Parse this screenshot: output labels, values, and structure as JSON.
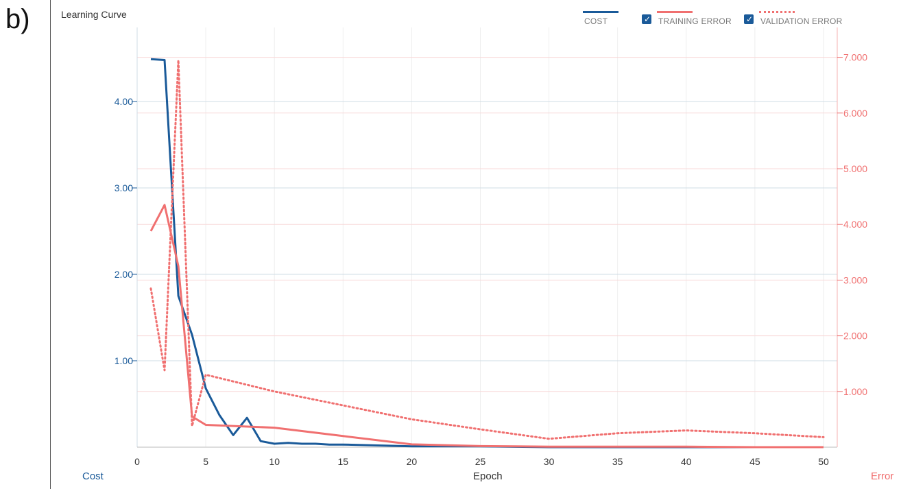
{
  "panel_label": "b)",
  "chart_data": {
    "type": "line",
    "title": "Learning Curve",
    "xlabel": "Epoch",
    "y_left_label": "Cost",
    "y_right_label": "Error",
    "xlim": [
      0,
      51
    ],
    "ylim_left": [
      0,
      4.5
    ],
    "ylim_right": [
      0,
      7.0
    ],
    "x_ticks": [
      0,
      5,
      10,
      15,
      20,
      25,
      30,
      35,
      40,
      45,
      50
    ],
    "y_left_ticks": [
      {
        "v": 1,
        "label": "1.00"
      },
      {
        "v": 2,
        "label": "2.00"
      },
      {
        "v": 3,
        "label": "3.00"
      },
      {
        "v": 4,
        "label": "4.00"
      }
    ],
    "y_right_ticks": [
      {
        "v": 1,
        "label": "1.000"
      },
      {
        "v": 2,
        "label": "2.000"
      },
      {
        "v": 3,
        "label": "3.000"
      },
      {
        "v": 4,
        "label": "4.000"
      },
      {
        "v": 5,
        "label": "5.000"
      },
      {
        "v": 6,
        "label": "6.000"
      },
      {
        "v": 7,
        "label": "7.000"
      }
    ],
    "grid": true,
    "legend_position": "top-right",
    "series": [
      {
        "name": "COST",
        "axis": "left",
        "color": "#1a5a99",
        "style": "solid",
        "checkbox": false,
        "x": [
          1,
          2,
          3,
          4,
          5,
          6,
          7,
          8,
          9,
          10,
          11,
          12,
          13,
          14,
          15,
          20,
          25,
          30,
          35,
          40,
          45,
          50
        ],
        "y": [
          4.49,
          4.48,
          1.75,
          1.3,
          0.68,
          0.37,
          0.14,
          0.34,
          0.07,
          0.04,
          0.05,
          0.04,
          0.04,
          0.03,
          0.03,
          0.01,
          0.01,
          0.0,
          0.0,
          0.0,
          0.0,
          0.0
        ]
      },
      {
        "name": "TRAINING ERROR",
        "axis": "right",
        "color": "#f07070",
        "style": "solid",
        "checkbox": true,
        "x": [
          1,
          2,
          3,
          4,
          5,
          10,
          15,
          20,
          25,
          30,
          35,
          40,
          45,
          50
        ],
        "y": [
          3.88,
          4.35,
          3.25,
          0.55,
          0.4,
          0.35,
          0.2,
          0.05,
          0.02,
          0.01,
          0.01,
          0.01,
          0.0,
          0.0
        ]
      },
      {
        "name": "VALIDATION ERROR",
        "axis": "right",
        "color": "#f07070",
        "style": "dotted",
        "checkbox": true,
        "x": [
          1,
          2,
          3,
          4,
          5,
          10,
          15,
          20,
          25,
          30,
          35,
          40,
          45,
          50
        ],
        "y": [
          2.85,
          1.38,
          6.95,
          0.38,
          1.3,
          1.0,
          0.75,
          0.5,
          0.32,
          0.15,
          0.25,
          0.3,
          0.25,
          0.18
        ]
      }
    ]
  }
}
